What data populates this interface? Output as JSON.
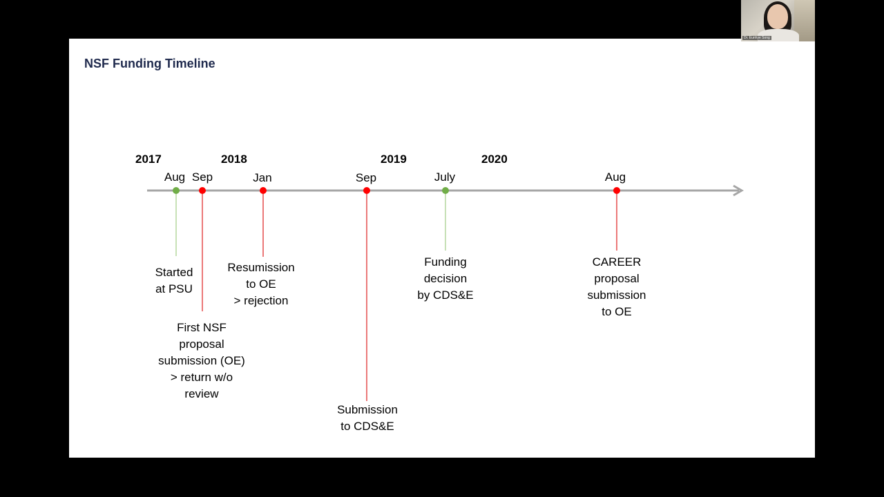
{
  "slide": {
    "title": "NSF Funding Timeline"
  },
  "timeline": {
    "years": [
      "2017",
      "2018",
      "2019",
      "2020"
    ],
    "markers": [
      {
        "month": "Aug",
        "status": "green",
        "event_lines": [
          "Started",
          "at PSU"
        ]
      },
      {
        "month": "Sep",
        "status": "red",
        "event_lines": [
          "First NSF",
          "proposal",
          "submission (OE)",
          "> return w/o",
          "review"
        ]
      },
      {
        "month": "Jan",
        "status": "red",
        "event_lines": [
          "Resumission",
          "to OE",
          "> rejection"
        ]
      },
      {
        "month": "Sep",
        "status": "red",
        "event_lines": [
          "Submission",
          "to CDS&E"
        ]
      },
      {
        "month": "July",
        "status": "green",
        "event_lines": [
          "Funding",
          "decision",
          "by CDS&E"
        ]
      },
      {
        "month": "Aug",
        "status": "red",
        "event_lines": [
          "CAREER",
          "proposal",
          "submission",
          "to OE"
        ]
      }
    ],
    "colors": {
      "axis": "#a6a6a6",
      "green": "#70ad47",
      "red": "#ff0000",
      "green_line": "#a9d18e",
      "red_line": "#e03030"
    }
  },
  "webcam": {
    "participant_name": "Dr. Eunhye Song"
  }
}
